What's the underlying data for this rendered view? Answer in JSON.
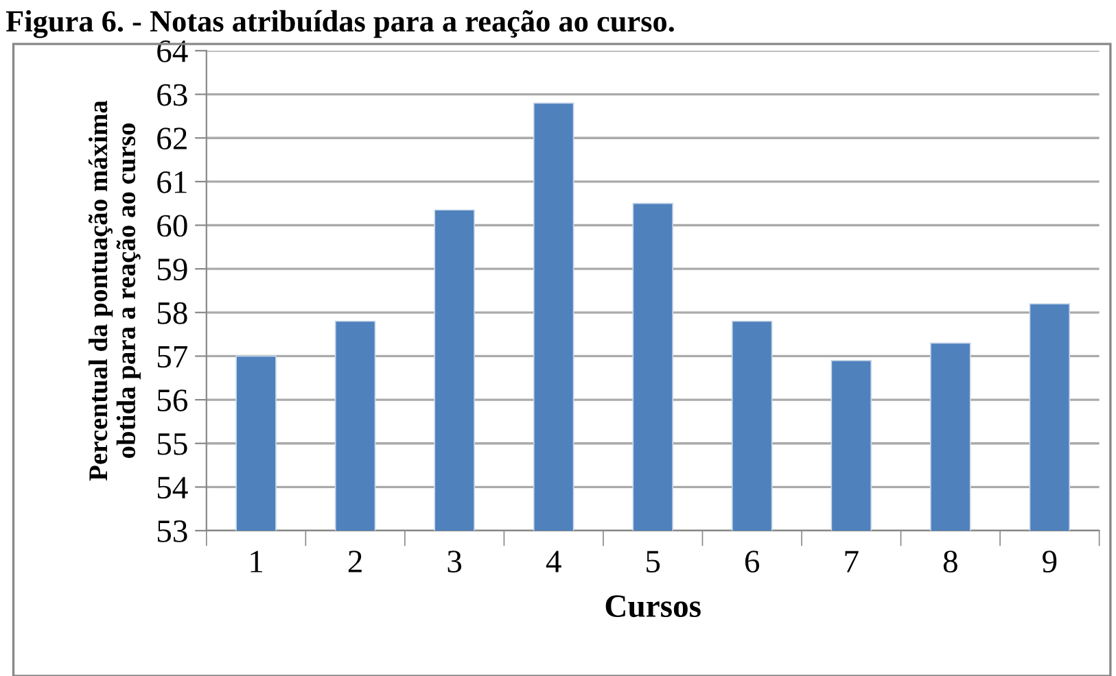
{
  "chart_data": {
    "type": "bar",
    "title": "Figura 6. - Notas atribuídas para a reação ao curso.",
    "xlabel": "Cursos",
    "ylabel": "Percentual da pontuação máxima\nobtida para a reação ao curso",
    "categories": [
      "1",
      "2",
      "3",
      "4",
      "5",
      "6",
      "7",
      "8",
      "9"
    ],
    "values": [
      57.0,
      57.8,
      60.35,
      62.8,
      60.5,
      57.8,
      56.9,
      57.3,
      58.2
    ],
    "color": "#4f81bd",
    "ylim": [
      53,
      64
    ],
    "yticks": [
      53,
      54,
      55,
      56,
      57,
      58,
      59,
      60,
      61,
      62,
      63,
      64
    ],
    "grid": "y",
    "legend": false
  }
}
